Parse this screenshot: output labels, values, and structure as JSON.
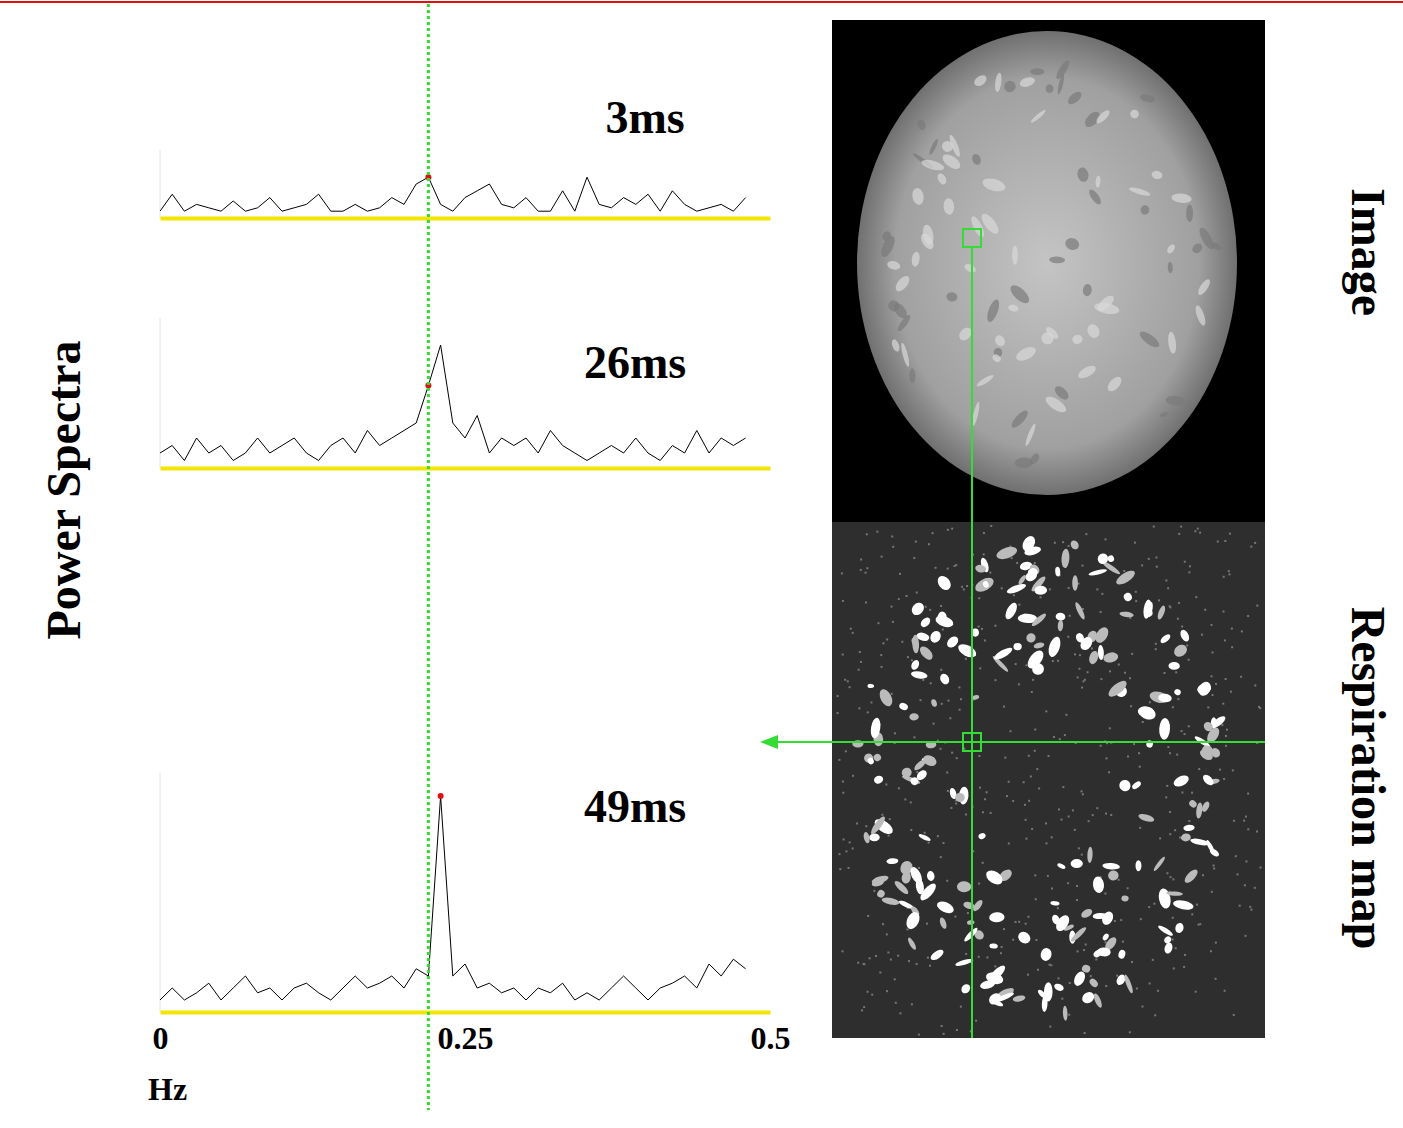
{
  "chart_data": [
    {
      "type": "line",
      "title": "3ms",
      "x": [
        0,
        0.01,
        0.02,
        0.03,
        0.04,
        0.05,
        0.06,
        0.07,
        0.08,
        0.09,
        0.1,
        0.11,
        0.12,
        0.13,
        0.14,
        0.15,
        0.16,
        0.17,
        0.18,
        0.19,
        0.2,
        0.21,
        0.22,
        0.23,
        0.24,
        0.25,
        0.26,
        0.27,
        0.28,
        0.29,
        0.3,
        0.31,
        0.32,
        0.33,
        0.34,
        0.35,
        0.36,
        0.37,
        0.38,
        0.39,
        0.4,
        0.41,
        0.42,
        0.43,
        0.44,
        0.45,
        0.46,
        0.47,
        0.48
      ],
      "values": [
        1,
        3.5,
        1,
        2,
        1.5,
        1,
        2.5,
        1,
        1.5,
        3,
        1,
        1.5,
        2,
        3.5,
        1,
        1,
        2,
        1,
        1.5,
        3,
        2,
        5,
        6,
        2,
        1,
        3,
        4,
        5,
        2,
        1.5,
        3,
        1,
        1,
        4,
        1,
        6,
        2,
        1.5,
        3,
        2,
        3.5,
        1,
        4,
        2,
        1,
        1.5,
        2,
        1,
        3
      ],
      "xlim": [
        0,
        0.5
      ],
      "ylim": [
        0,
        10
      ],
      "tick_labels": false,
      "color": "#000000",
      "highlight_x": 0.22
    },
    {
      "type": "line",
      "title": "26ms",
      "x": [
        0,
        0.01,
        0.02,
        0.03,
        0.04,
        0.05,
        0.06,
        0.07,
        0.08,
        0.09,
        0.1,
        0.11,
        0.12,
        0.13,
        0.14,
        0.15,
        0.16,
        0.17,
        0.18,
        0.19,
        0.2,
        0.21,
        0.22,
        0.23,
        0.24,
        0.25,
        0.26,
        0.27,
        0.28,
        0.29,
        0.3,
        0.31,
        0.32,
        0.33,
        0.34,
        0.35,
        0.36,
        0.37,
        0.38,
        0.39,
        0.4,
        0.41,
        0.42,
        0.43,
        0.44,
        0.45,
        0.46,
        0.47,
        0.48
      ],
      "values": [
        1,
        1.5,
        0.5,
        2,
        1,
        1.5,
        0.5,
        1,
        2,
        1,
        1.5,
        2,
        1,
        0.5,
        1.5,
        2,
        1,
        2.5,
        1.5,
        2,
        2.5,
        3,
        5.5,
        8.2,
        3,
        2,
        3.5,
        1,
        2,
        1.5,
        2,
        1,
        2.5,
        1.5,
        1,
        0.5,
        1,
        1.5,
        1,
        2,
        1,
        0.5,
        1.5,
        1,
        2.5,
        1,
        2,
        1.5,
        2
      ],
      "xlim": [
        0,
        0.5
      ],
      "ylim": [
        0,
        10
      ],
      "tick_labels": false,
      "color": "#000000",
      "highlight_x": 0.22
    },
    {
      "type": "line",
      "title": "49ms",
      "x": [
        0,
        0.01,
        0.02,
        0.03,
        0.04,
        0.05,
        0.06,
        0.07,
        0.08,
        0.09,
        0.1,
        0.11,
        0.12,
        0.13,
        0.14,
        0.15,
        0.16,
        0.17,
        0.18,
        0.19,
        0.2,
        0.21,
        0.22,
        0.23,
        0.24,
        0.25,
        0.26,
        0.27,
        0.28,
        0.29,
        0.3,
        0.31,
        0.32,
        0.33,
        0.34,
        0.35,
        0.36,
        0.37,
        0.38,
        0.39,
        0.4,
        0.41,
        0.42,
        0.43,
        0.44,
        0.45,
        0.46,
        0.47,
        0.48
      ],
      "values": [
        0.5,
        1,
        0.5,
        0.8,
        1.2,
        0.5,
        1,
        1.5,
        0.8,
        1,
        0.5,
        1,
        1.2,
        0.8,
        0.5,
        1,
        1.5,
        1,
        1.2,
        1.5,
        1,
        1.8,
        1.5,
        9,
        1.5,
        2,
        1,
        1.2,
        0.8,
        1,
        0.5,
        1,
        0.8,
        1.2,
        0.5,
        0.8,
        0.5,
        1,
        1.5,
        1,
        0.5,
        1,
        1.2,
        1.5,
        1,
        2,
        1.5,
        2.2,
        1.8
      ],
      "xlim": [
        0,
        0.5
      ],
      "xticks": [
        0,
        0.25,
        0.5
      ],
      "ylim": [
        0,
        10
      ],
      "x_label": "Hz",
      "tick_labels": "x",
      "color": "#000000",
      "highlight_x": 0.23
    }
  ],
  "figure": {
    "y_label": "Power Spectra",
    "reference_x": 0.22,
    "images": [
      {
        "label": "Image"
      },
      {
        "label": "Respiration map"
      }
    ]
  }
}
